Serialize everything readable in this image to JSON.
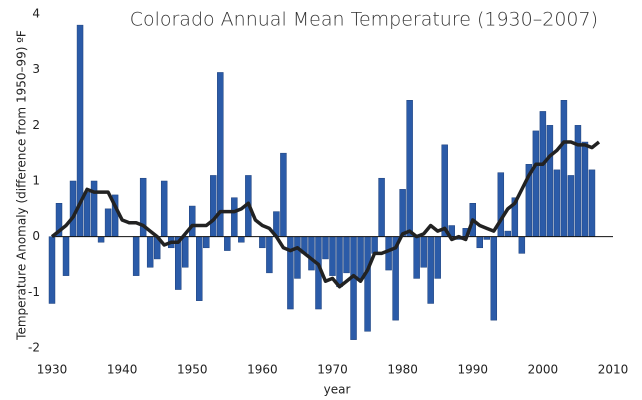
{
  "chart_data": {
    "type": "bar",
    "title": "Colorado Annual Mean Temperature (1930–2007)",
    "x_label": "year",
    "y_label": "Temperature Anomaly (difference from 1950–99) ºF",
    "x": [
      1930,
      1931,
      1932,
      1933,
      1934,
      1935,
      1936,
      1937,
      1938,
      1939,
      1940,
      1941,
      1942,
      1943,
      1944,
      1945,
      1946,
      1947,
      1948,
      1949,
      1950,
      1951,
      1952,
      1953,
      1954,
      1955,
      1956,
      1957,
      1958,
      1959,
      1960,
      1961,
      1962,
      1963,
      1964,
      1965,
      1966,
      1967,
      1968,
      1969,
      1970,
      1971,
      1972,
      1973,
      1974,
      1975,
      1976,
      1977,
      1978,
      1979,
      1980,
      1981,
      1982,
      1983,
      1984,
      1985,
      1986,
      1987,
      1988,
      1989,
      1990,
      1991,
      1992,
      1993,
      1994,
      1995,
      1996,
      1997,
      1998,
      1999,
      2000,
      2001,
      2002,
      2003,
      2004,
      2005,
      2006,
      2007
    ],
    "values": [
      -1.2,
      0.6,
      -0.7,
      1.0,
      3.8,
      0.8,
      1.0,
      -0.1,
      0.5,
      0.75,
      0.0,
      0.0,
      -0.7,
      1.05,
      -0.55,
      -0.4,
      1.0,
      -0.2,
      -0.95,
      -0.55,
      0.55,
      -1.15,
      -0.2,
      1.1,
      2.95,
      -0.25,
      0.7,
      -0.1,
      1.1,
      0.0,
      -0.2,
      -0.65,
      0.45,
      1.5,
      -1.3,
      -0.75,
      -0.3,
      -0.6,
      -1.3,
      -0.4,
      -0.7,
      -0.9,
      -0.65,
      -1.85,
      -0.75,
      -1.7,
      -0.3,
      1.05,
      -0.6,
      -1.5,
      0.85,
      2.45,
      -0.75,
      -0.55,
      -1.2,
      -0.75,
      1.65,
      0.2,
      -0.05,
      0.15,
      0.6,
      -0.2,
      -0.05,
      -1.5,
      1.15,
      0.1,
      0.7,
      -0.3,
      1.3,
      1.9,
      2.25,
      2.0,
      1.2,
      2.45,
      1.1,
      2.0,
      1.7,
      1.2
    ],
    "color": "#2b5ba8",
    "line": {
      "color": "#222222",
      "x": [
        1930,
        1931,
        1932,
        1933,
        1934,
        1935,
        1936,
        1937,
        1938,
        1939,
        1940,
        1941,
        1942,
        1943,
        1944,
        1945,
        1946,
        1947,
        1948,
        1949,
        1950,
        1951,
        1952,
        1953,
        1954,
        1955,
        1956,
        1957,
        1958,
        1959,
        1960,
        1961,
        1962,
        1963,
        1964,
        1965,
        1966,
        1967,
        1968,
        1969,
        1970,
        1971,
        1972,
        1973,
        1974,
        1975,
        1976,
        1977,
        1978,
        1979,
        1980,
        1981,
        1982,
        1983,
        1984,
        1985,
        1986,
        1987,
        1988,
        1989,
        1990,
        1991,
        1992,
        1993,
        1994,
        1995,
        1996,
        1997,
        1998,
        1999,
        2000,
        2001,
        2002,
        2003,
        2004,
        2005,
        2006,
        2007,
        2008
      ],
      "values": [
        0.0,
        0.1,
        0.2,
        0.35,
        0.6,
        0.85,
        0.8,
        0.8,
        0.8,
        0.55,
        0.3,
        0.25,
        0.25,
        0.2,
        0.1,
        0.0,
        -0.15,
        -0.1,
        -0.1,
        0.05,
        0.2,
        0.2,
        0.2,
        0.3,
        0.45,
        0.45,
        0.45,
        0.5,
        0.6,
        0.3,
        0.2,
        0.15,
        0.0,
        -0.2,
        -0.25,
        -0.2,
        -0.3,
        -0.4,
        -0.5,
        -0.8,
        -0.75,
        -0.9,
        -0.8,
        -0.7,
        -0.8,
        -0.6,
        -0.3,
        -0.3,
        -0.25,
        -0.2,
        0.05,
        0.1,
        0.0,
        0.05,
        0.2,
        0.1,
        0.15,
        -0.05,
        0.0,
        -0.05,
        0.3,
        0.2,
        0.15,
        0.1,
        0.3,
        0.5,
        0.6,
        0.85,
        1.1,
        1.3,
        1.3,
        1.45,
        1.55,
        1.7,
        1.7,
        1.65,
        1.65,
        1.6,
        1.7
      ]
    },
    "xlim": [
      1930,
      2010
    ],
    "xticks": [
      1930,
      1940,
      1950,
      1960,
      1970,
      1980,
      1990,
      2000,
      2010
    ],
    "ylim": [
      -2,
      4
    ],
    "yticks": [
      -2,
      -1,
      0,
      1,
      2,
      3,
      4
    ]
  }
}
